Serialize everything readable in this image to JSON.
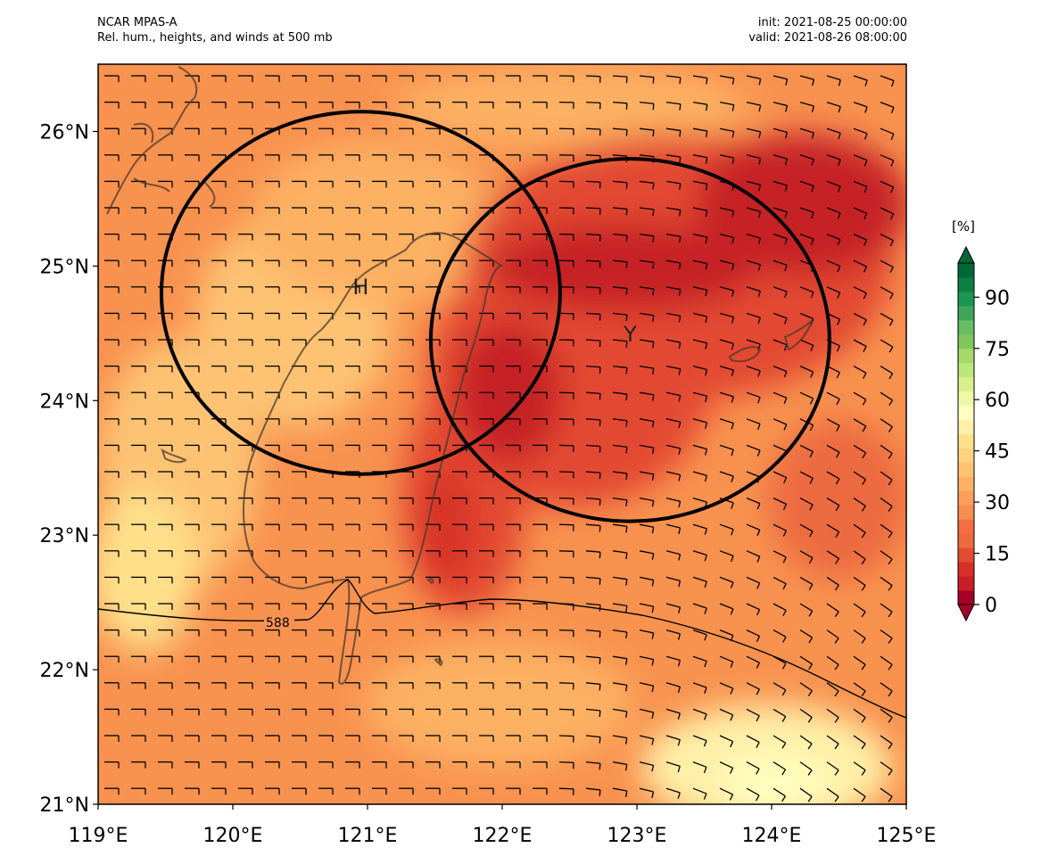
{
  "header": {
    "model": "NCAR MPAS-A",
    "field": "Rel. hum., heights, and winds at 500 mb",
    "init": "init: 2021-08-25 00:00:00",
    "valid": "valid: 2021-08-26 08:00:00"
  },
  "map": {
    "lon_range": [
      119,
      125
    ],
    "lat_range": [
      21,
      26.5
    ],
    "x_ticks": [
      "119°E",
      "120°E",
      "121°E",
      "122°E",
      "123°E",
      "124°E",
      "125°E"
    ],
    "y_ticks": [
      "21°N",
      "22°N",
      "23°N",
      "24°N",
      "25°N",
      "26°N"
    ],
    "contour_label": "588",
    "markers": [
      {
        "label": "H",
        "lon": 120.95,
        "lat": 24.85
      },
      {
        "label": "Y",
        "lon": 122.95,
        "lat": 24.5
      }
    ],
    "circles": [
      {
        "center_lon": 120.95,
        "center_lat": 24.8,
        "radius_deg": 1.48
      },
      {
        "center_lon": 122.95,
        "center_lat": 24.45,
        "radius_deg": 1.48
      }
    ]
  },
  "colorbar": {
    "unit": "[%]",
    "ticks": [
      "0",
      "15",
      "30",
      "45",
      "60",
      "75",
      "90"
    ],
    "colors": [
      "#a50026",
      "#c62026",
      "#d73027",
      "#e34a33",
      "#ec6a3f",
      "#f46d43",
      "#f88d52",
      "#fba05b",
      "#fdb163",
      "#fdc373",
      "#fed27f",
      "#fee08b",
      "#fff0a8",
      "#ffffbf",
      "#eef8a6",
      "#d9ef8b",
      "#bde67a",
      "#a6d96a",
      "#7fc65f",
      "#66bd63",
      "#3fa658",
      "#1a9850",
      "#0d7f43",
      "#006837"
    ]
  }
}
